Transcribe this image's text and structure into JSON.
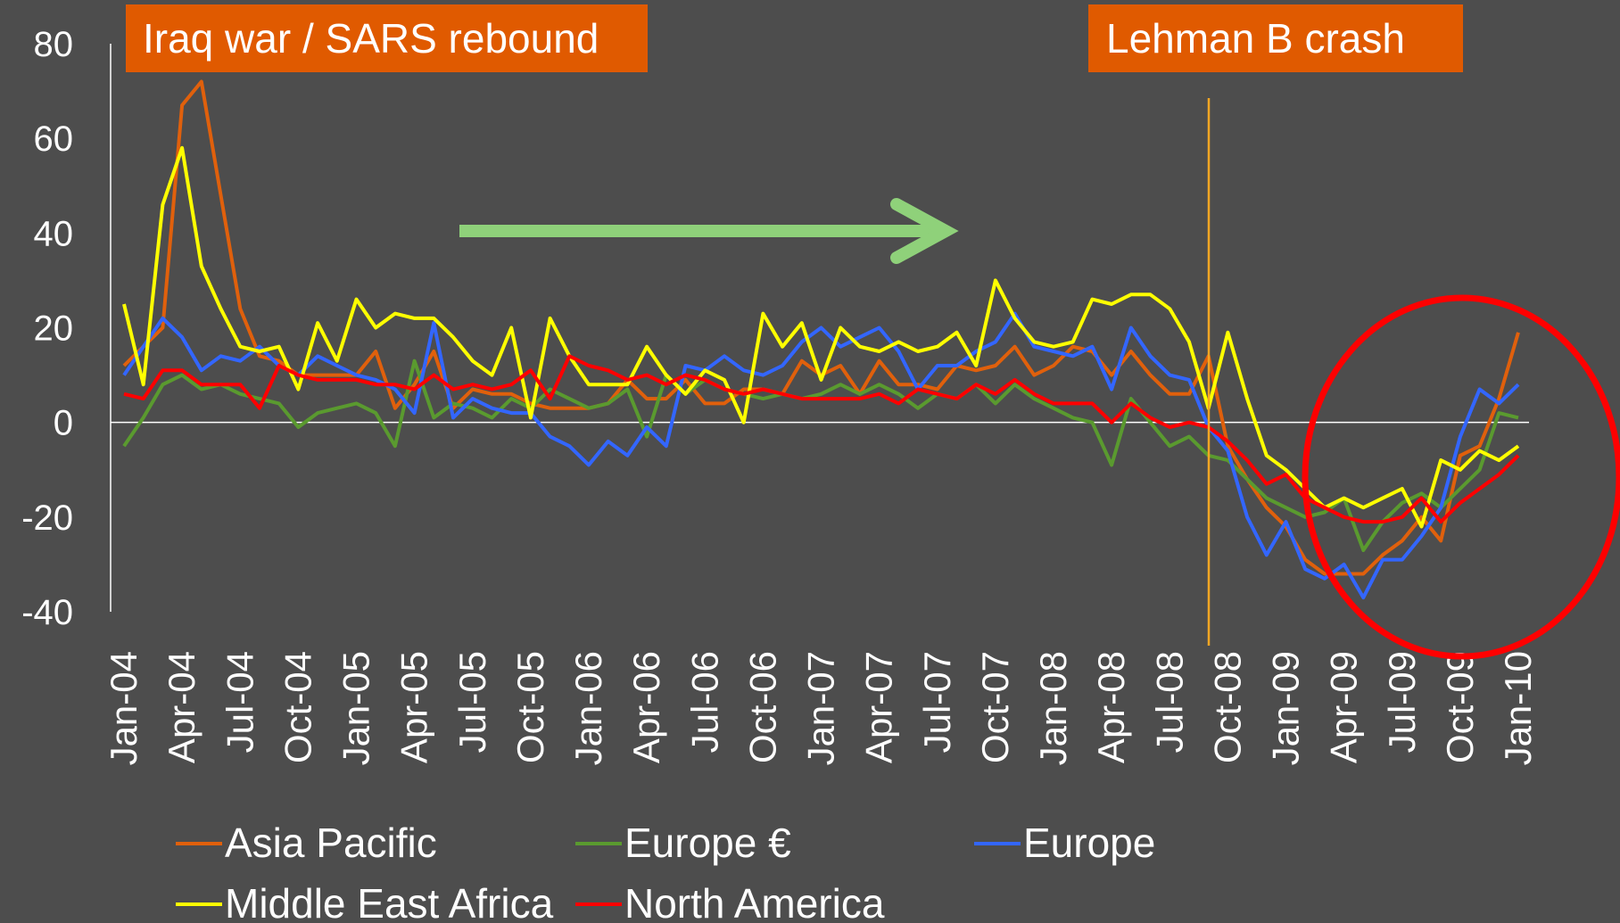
{
  "chart_data": {
    "type": "line",
    "annotations": [
      "Iraq war / SARS rebound",
      "Lehman B crash"
    ],
    "categories": [
      "Jan-04",
      null,
      null,
      "Apr-04",
      null,
      null,
      "Jul-04",
      null,
      null,
      "Oct-04",
      null,
      null,
      "Jan-05",
      null,
      null,
      "Apr-05",
      null,
      null,
      "Jul-05",
      null,
      null,
      "Oct-05",
      null,
      null,
      "Jan-06",
      null,
      null,
      "Apr-06",
      null,
      null,
      "Jul-06",
      null,
      null,
      "Oct-06",
      null,
      null,
      "Jan-07",
      null,
      null,
      "Apr-07",
      null,
      null,
      "Jul-07",
      null,
      null,
      "Oct-07",
      null,
      null,
      "Jan-08",
      null,
      null,
      "Apr-08",
      null,
      null,
      "Jul-08",
      null,
      null,
      "Oct-08",
      null,
      null,
      "Jan-09",
      null,
      null,
      "Apr-09",
      null,
      null,
      "Jul-09",
      null,
      null,
      "Oct-09",
      null,
      null,
      "Jan-10"
    ],
    "series": [
      {
        "name": "Asia Pacific",
        "color": "#e0600c",
        "values": [
          12,
          16,
          20,
          67,
          72,
          48,
          24,
          14,
          13,
          10,
          10,
          10,
          10,
          15,
          3,
          8,
          15,
          3,
          7,
          6,
          6,
          4,
          3,
          3,
          3,
          4,
          9,
          5,
          5,
          9,
          4,
          4,
          7,
          7,
          6,
          13,
          10,
          12,
          6,
          13,
          8,
          8,
          7,
          12,
          11,
          12,
          16,
          10,
          12,
          16,
          15,
          10,
          15,
          10,
          6,
          6,
          14,
          -5,
          -12,
          -18,
          -22,
          -29,
          -32,
          -32,
          -32,
          -28,
          -25,
          -20,
          -25,
          -7,
          -5,
          5,
          19
        ]
      },
      {
        "name": "Europe €",
        "color": "#5a9a2f",
        "values": [
          -5,
          1,
          8,
          10,
          7,
          8,
          6,
          5,
          4,
          -1,
          2,
          3,
          4,
          2,
          -5,
          13,
          1,
          4,
          3,
          1,
          5,
          3,
          7,
          5,
          3,
          4,
          7,
          -3,
          10,
          6,
          9,
          7,
          6,
          5,
          6,
          5,
          6,
          8,
          6,
          8,
          6,
          3,
          6,
          5,
          8,
          4,
          8,
          5,
          3,
          1,
          0,
          -9,
          5,
          0,
          -5,
          -3,
          -7,
          -8,
          -12,
          -16,
          -18,
          -20,
          -19,
          -16,
          -27,
          -21,
          -17,
          -15,
          -18,
          -14,
          -10,
          2,
          1
        ]
      },
      {
        "name": "Europe",
        "color": "#3366ff",
        "values": [
          10,
          16,
          22,
          18,
          11,
          14,
          13,
          16,
          12,
          10,
          14,
          12,
          10,
          9,
          7,
          2,
          21,
          1,
          5,
          3,
          2,
          2,
          -3,
          -5,
          -9,
          -4,
          -7,
          -1,
          -5,
          12,
          11,
          14,
          11,
          10,
          12,
          17,
          20,
          16,
          18,
          20,
          15,
          7,
          12,
          12,
          15,
          17,
          23,
          16,
          15,
          14,
          16,
          7,
          20,
          14,
          10,
          9,
          -1,
          -6,
          -20,
          -28,
          -21,
          -31,
          -33,
          -30,
          -37,
          -29,
          -29,
          -24,
          -18,
          -3,
          7,
          4,
          8
        ]
      },
      {
        "name": "Middle East Africa",
        "color": "#ffff00",
        "values": [
          25,
          8,
          46,
          58,
          33,
          24,
          16,
          15,
          16,
          7,
          21,
          13,
          26,
          20,
          23,
          22,
          22,
          18,
          13,
          10,
          20,
          1,
          22,
          14,
          8,
          8,
          8,
          16,
          10,
          6,
          11,
          9,
          0,
          23,
          16,
          21,
          9,
          20,
          16,
          15,
          17,
          15,
          16,
          19,
          12,
          30,
          22,
          17,
          16,
          17,
          26,
          25,
          27,
          27,
          24,
          17,
          3,
          19,
          5,
          -7,
          -10,
          -14,
          -18,
          -16,
          -18,
          -16,
          -14,
          -22,
          -8,
          -10,
          -6,
          -8,
          -5
        ]
      },
      {
        "name": "North America",
        "color": "#ff0000",
        "values": [
          6,
          5,
          11,
          11,
          8,
          8,
          8,
          3,
          12,
          10,
          9,
          9,
          9,
          8,
          8,
          7,
          10,
          7,
          8,
          7,
          8,
          11,
          5,
          14,
          12,
          11,
          9,
          10,
          8,
          10,
          9,
          7,
          6,
          7,
          6,
          5,
          5,
          5,
          5,
          6,
          4,
          7,
          6,
          5,
          8,
          6,
          9,
          6,
          4,
          4,
          4,
          0,
          4,
          1,
          -1,
          0,
          -1,
          -4,
          -8,
          -13,
          -11,
          -16,
          -18,
          -20,
          -21,
          -21,
          -20,
          -16,
          -21,
          -17,
          -14,
          -11,
          -7
        ]
      }
    ],
    "ylim": [
      -40,
      80
    ],
    "yticks": [
      -40,
      -20,
      0,
      20,
      40,
      60,
      80
    ]
  }
}
